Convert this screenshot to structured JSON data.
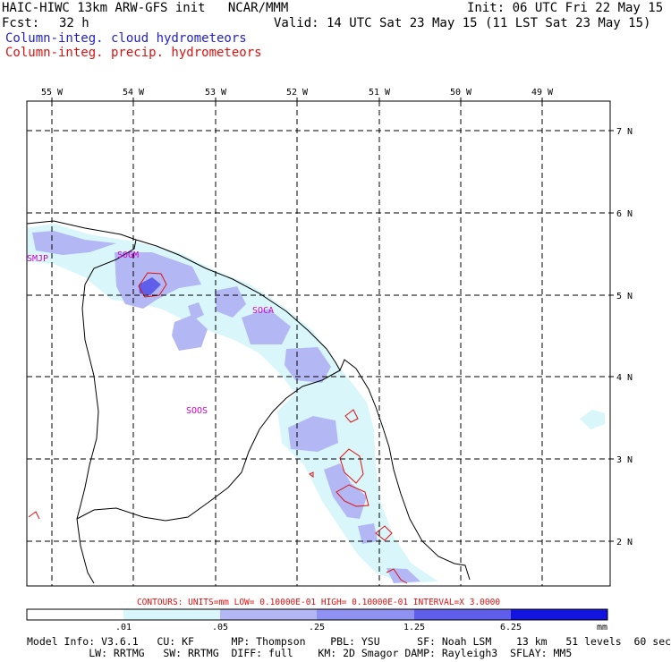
{
  "header": {
    "title": "HAIC-HIWC 13km ARW-GFS init   NCAR/MMM",
    "init": "Init: 06 UTC Fri 22 May 15",
    "fcst_label": "Fcst:",
    "fcst_value": "32 h",
    "valid": "Valid: 14 UTC Sat 23 May 15 (11 LST Sat 23 May 15)",
    "field_cloud": "Column-integ. cloud hydrometeors",
    "field_precip": "Column-integ. precip. hydrometeors"
  },
  "map": {
    "lon_labels": [
      "55 W",
      "54 W",
      "53 W",
      "52 W",
      "51 W",
      "50 W",
      "49 W"
    ],
    "lat_labels": [
      "7 N",
      "6 N",
      "5 N",
      "4 N",
      "3 N",
      "2 N"
    ],
    "stations": [
      "SMJP",
      "SOGM",
      "SOCA",
      "SOOS"
    ]
  },
  "contour_info": "CONTOURS:  UNITS=mm  LOW= 0.10000E-01  HIGH= 0.10000E-01  INTERVAL=X  3.0000",
  "colorbar": {
    "ticks": [
      ".01",
      ".05",
      ".25",
      "1.25",
      "6.25"
    ],
    "units": "mm",
    "colors": [
      "#ffffff",
      "#d9f6fb",
      "#b3b8f4",
      "#8f92f0",
      "#5e5eea",
      "#1414e0"
    ]
  },
  "footer": {
    "line1": "Model Info: V3.6.1   CU: KF      MP: Thompson    PBL: YSU      SF: Noah LSM    13 km   51 levels  60 sec",
    "line2": "          LW: RRTMG   SW: RRTMG  DIFF: full    KM: 2D Smagor DAMP: Rayleigh3  SFLAY: MM5"
  },
  "colors": {
    "cloud_text": "#1f1fd0",
    "precip_contour": "#e01010",
    "station_label": "#cc00cc"
  }
}
